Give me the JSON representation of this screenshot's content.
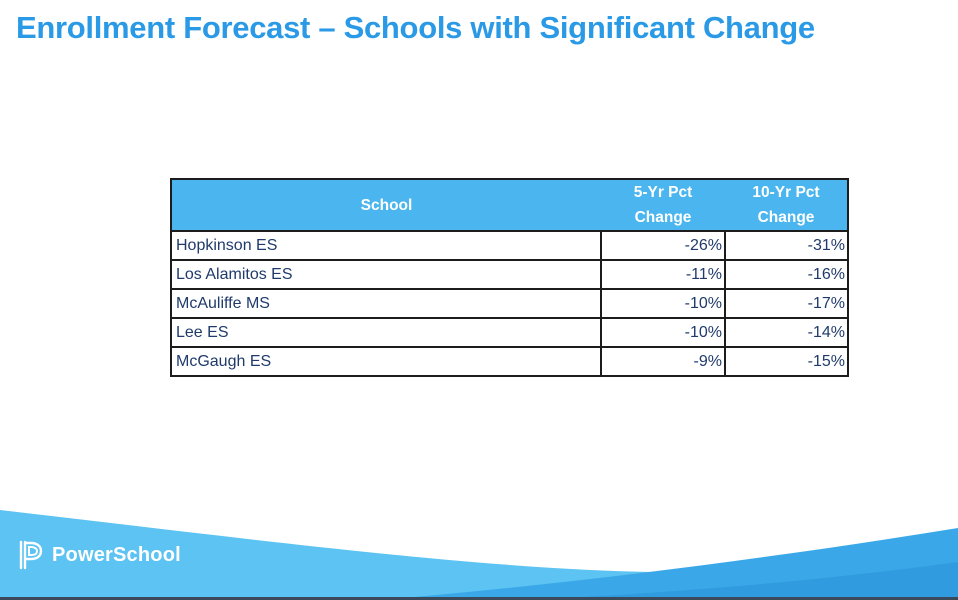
{
  "slide": {
    "title": "Enrollment Forecast – Schools with Significant Change"
  },
  "table": {
    "headers": {
      "school": "School",
      "five_yr": [
        "5-Yr  Pct",
        "Change"
      ],
      "ten_yr": [
        "10-Yr Pct",
        "Change"
      ]
    },
    "rows": [
      {
        "school": "Hopkinson ES",
        "five_yr": "-26%",
        "ten_yr": "-31%"
      },
      {
        "school": "Los Alamitos ES",
        "five_yr": "-11%",
        "ten_yr": "-16%"
      },
      {
        "school": "McAuliffe MS",
        "five_yr": "-10%",
        "ten_yr": "-17%"
      },
      {
        "school": "Lee ES",
        "five_yr": "-10%",
        "ten_yr": "-14%"
      },
      {
        "school": "McGaugh ES",
        "five_yr": "-9%",
        "ten_yr": "-15%"
      }
    ]
  },
  "footer": {
    "logo_text": "PowerSchool",
    "logo_icon": "powerschool-logo-icon",
    "colors": {
      "band_light": "#5cc3f2",
      "band_dark": "#2a8fd8",
      "title": "#2b9ae6",
      "header_fill": "#4ab5ee"
    }
  }
}
